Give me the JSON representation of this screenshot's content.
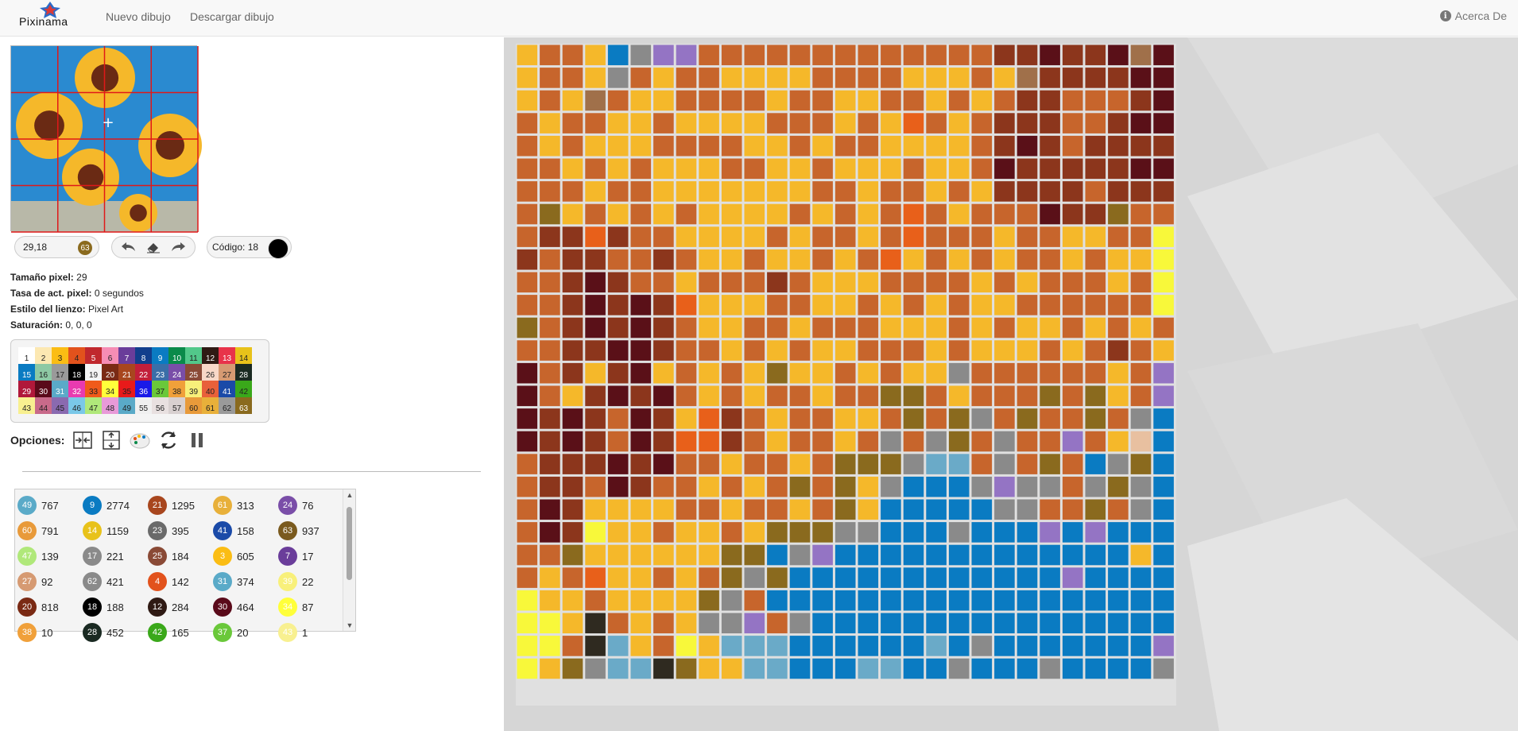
{
  "nav": {
    "brand": "Pixinama",
    "links": [
      "Nuevo dibujo",
      "Descargar dibujo"
    ],
    "about": "Acerca De"
  },
  "status": {
    "coords": "29,18",
    "coord_badge": "63",
    "code_label": "Código: 18",
    "code_color": "#000000"
  },
  "info": [
    {
      "label": "Tamaño pixel:",
      "value": "29"
    },
    {
      "label": "Tasa de act. pixel:",
      "value": "0 segundos"
    },
    {
      "label": "Estilo del lienzo:",
      "value": "Pixel Art"
    },
    {
      "label": "Saturación:",
      "value": "0, 0, 0"
    }
  ],
  "options_label": "Opciones:",
  "palette": [
    {
      "n": "1",
      "c": "#ffffff",
      "t": "#222"
    },
    {
      "n": "2",
      "c": "#fce8b2",
      "t": "#222"
    },
    {
      "n": "3",
      "c": "#fbbd14",
      "t": "#222"
    },
    {
      "n": "4",
      "c": "#e2521c",
      "t": "#222"
    },
    {
      "n": "5",
      "c": "#c0282d",
      "t": "#fff"
    },
    {
      "n": "6",
      "c": "#f68db5",
      "t": "#222"
    },
    {
      "n": "7",
      "c": "#6a3d9a",
      "t": "#fff"
    },
    {
      "n": "8",
      "c": "#123e8c",
      "t": "#fff"
    },
    {
      "n": "9",
      "c": "#0a7bc2",
      "t": "#fff"
    },
    {
      "n": "10",
      "c": "#0a8a4a",
      "t": "#fff"
    },
    {
      "n": "11",
      "c": "#52c88a",
      "t": "#222"
    },
    {
      "n": "12",
      "c": "#2f1a14",
      "t": "#fff"
    },
    {
      "n": "13",
      "c": "#e8334a",
      "t": "#fff"
    },
    {
      "n": "14",
      "c": "#e8c21a",
      "t": "#222"
    },
    {
      "n": "15",
      "c": "#0a7bc2",
      "t": "#fff"
    },
    {
      "n": "16",
      "c": "#8ec9a4",
      "t": "#222"
    },
    {
      "n": "17",
      "c": "#9a9a9a",
      "t": "#222"
    },
    {
      "n": "18",
      "c": "#000000",
      "t": "#fff"
    },
    {
      "n": "19",
      "c": "#f4f4f4",
      "t": "#222"
    },
    {
      "n": "20",
      "c": "#7a2a14",
      "t": "#fff"
    },
    {
      "n": "21",
      "c": "#a8461e",
      "t": "#fff"
    },
    {
      "n": "22",
      "c": "#c21e3a",
      "t": "#fff"
    },
    {
      "n": "23",
      "c": "#3a6ea8",
      "t": "#fff"
    },
    {
      "n": "24",
      "c": "#7a4ea8",
      "t": "#fff"
    },
    {
      "n": "25",
      "c": "#8a4a36",
      "t": "#fff"
    },
    {
      "n": "26",
      "c": "#f8d8c8",
      "t": "#222"
    },
    {
      "n": "27",
      "c": "#d69a72",
      "t": "#222"
    },
    {
      "n": "28",
      "c": "#1a2a22",
      "t": "#fff"
    },
    {
      "n": "29",
      "c": "#b0183a",
      "t": "#fff"
    },
    {
      "n": "30",
      "c": "#5a0a1a",
      "t": "#fff"
    },
    {
      "n": "31",
      "c": "#5aaac8",
      "t": "#fff"
    },
    {
      "n": "32",
      "c": "#e83ab0",
      "t": "#fff"
    },
    {
      "n": "33",
      "c": "#f05a1a",
      "t": "#222"
    },
    {
      "n": "34",
      "c": "#ffff3a",
      "t": "#222"
    },
    {
      "n": "35",
      "c": "#e81a1a",
      "t": "#222"
    },
    {
      "n": "36",
      "c": "#1a1ae8",
      "t": "#fff"
    },
    {
      "n": "37",
      "c": "#6ac83a",
      "t": "#222"
    },
    {
      "n": "38",
      "c": "#f0a03a",
      "t": "#222"
    },
    {
      "n": "39",
      "c": "#f8f07a",
      "t": "#222"
    },
    {
      "n": "40",
      "c": "#e8603a",
      "t": "#222"
    },
    {
      "n": "41",
      "c": "#1a4aa8",
      "t": "#fff"
    },
    {
      "n": "42",
      "c": "#3aa81a",
      "t": "#222"
    },
    {
      "n": "43",
      "c": "#f8f090",
      "t": "#222"
    },
    {
      "n": "44",
      "c": "#c86a8a",
      "t": "#222"
    },
    {
      "n": "45",
      "c": "#8a6ab0",
      "t": "#222"
    },
    {
      "n": "46",
      "c": "#7ac8e8",
      "t": "#222"
    },
    {
      "n": "47",
      "c": "#b0e87a",
      "t": "#222"
    },
    {
      "n": "48",
      "c": "#e89ad8",
      "t": "#222"
    },
    {
      "n": "49",
      "c": "#5aaac8",
      "t": "#222"
    },
    {
      "n": "55",
      "c": "#f0f0f0",
      "t": "#222"
    },
    {
      "n": "56",
      "c": "#e8e0e0",
      "t": "#222"
    },
    {
      "n": "57",
      "c": "#d8d0d0",
      "t": "#222"
    },
    {
      "n": "60",
      "c": "#e89a3a",
      "t": "#222"
    },
    {
      "n": "61",
      "c": "#e8b03a",
      "t": "#222"
    },
    {
      "n": "62",
      "c": "#9a9a9a",
      "t": "#222"
    },
    {
      "n": "63",
      "c": "#8a6a1e",
      "t": "#fff"
    }
  ],
  "counts": [
    {
      "n": "49",
      "v": "767",
      "c": "#5aaac8"
    },
    {
      "n": "9",
      "v": "2774",
      "c": "#0a7bc2"
    },
    {
      "n": "21",
      "v": "1295",
      "c": "#a8461e"
    },
    {
      "n": "61",
      "v": "313",
      "c": "#e8b03a"
    },
    {
      "n": "24",
      "v": "76",
      "c": "#7a4ea8"
    },
    {
      "n": "60",
      "v": "791",
      "c": "#e89a3a"
    },
    {
      "n": "14",
      "v": "1159",
      "c": "#e8c21a"
    },
    {
      "n": "23",
      "v": "395",
      "c": "#6a6a6a"
    },
    {
      "n": "41",
      "v": "158",
      "c": "#1a4aa8"
    },
    {
      "n": "63",
      "v": "937",
      "c": "#7a5a1e"
    },
    {
      "n": "47",
      "v": "139",
      "c": "#b0e87a"
    },
    {
      "n": "17",
      "v": "221",
      "c": "#8a8a8a"
    },
    {
      "n": "25",
      "v": "184",
      "c": "#8a4a36"
    },
    {
      "n": "3",
      "v": "605",
      "c": "#fbbd14"
    },
    {
      "n": "7",
      "v": "17",
      "c": "#6a3d9a"
    },
    {
      "n": "27",
      "v": "92",
      "c": "#d69a72"
    },
    {
      "n": "62",
      "v": "421",
      "c": "#8a8a8a"
    },
    {
      "n": "4",
      "v": "142",
      "c": "#e2521c"
    },
    {
      "n": "31",
      "v": "374",
      "c": "#5aaac8"
    },
    {
      "n": "39",
      "v": "22",
      "c": "#f8f07a"
    },
    {
      "n": "20",
      "v": "818",
      "c": "#7a2a14"
    },
    {
      "n": "18",
      "v": "188",
      "c": "#000000"
    },
    {
      "n": "12",
      "v": "284",
      "c": "#2f1a14"
    },
    {
      "n": "30",
      "v": "464",
      "c": "#5a0a1a"
    },
    {
      "n": "34",
      "v": "87",
      "c": "#ffff3a"
    },
    {
      "n": "38",
      "v": "10",
      "c": "#f0a03a"
    },
    {
      "n": "28",
      "v": "452",
      "c": "#1a2a22"
    },
    {
      "n": "42",
      "v": "165",
      "c": "#3aa81a"
    },
    {
      "n": "37",
      "v": "20",
      "c": "#6ac83a"
    },
    {
      "n": "43",
      "v": "1",
      "c": "#f8f090"
    }
  ],
  "canvas_grid": [
    "3cc3ig66cccccccccccccddbddbobc",
    "3cc3gc3cc3333cccc333c3oddddbbbc",
    "3c3oc33cccc3cc33cc3c3cddcccdbbb",
    "c3cc33c3333ccc3c3jc3cdddccdbbbo",
    "c3c333cccc33c3cc3333cdbdcdddddd",
    "cc3c3c333cc33c333c33cbdddddbbb3",
    "ccc3cc3333333cc3cc3c3ddddcddd3c",
    "cp3c3c3c3333c3c3cjc3cccbddpccc3",
    "cddjdcc3333c3cc3cjccc3cc33ccyyy",
    "dcddccdc33c33c3cj3c3c3cc3c33y3c",
    "ccdbdcc3cccdc333cccc3c3ccc3cyyc",
    "ccdbdbdj333cc33c3c3c33ccccccyc3",
    "pcdbdbdc33cc3ccc333c3c33c3c3c3c",
    "ccddbbdcc3c3c33ccc3c333c3cdc3gc",
    "bcd3db3c3c3p33c3c33gcccccc3cvcc",
    "bc3dbdbc3c3cc3ccppc3cccpcp3cvcc",
    "bdbdcbd3jdc3cc33cpcpgcpccpcgsgc",
    "bdbdcbdjjdc3cc3cgcgpcgccvc3zsgs",
    "cdddbdbcc3cc3cpppgaacgcpcsgpsgp",
    "cddcbdcc3c3cpcp3gsssgvggcgpgsvp",
    "cbd3333cc3cc3cp3sssssggccpcgssp",
    "cbdy33c33c3pppggsssgsssvsvssssg",
    "ccp333333ppsgvsssssssssssss3sss",
    "c3cj33c3cpgpssssssssssssvssssss",
    "y33c3333pgcssssssssssssssssssss",
    "yy3kc3c3ggvcgsssssssssssssssssg",
    "yycka3cy3aaassssssasgsssssssvsv",
    "y3pgaakp33aasssaassgsssgssssgsl"
  ],
  "canvas_colors": {
    "3": "#f5b82a",
    "c": "#c7652c",
    "d": "#8c361c",
    "b": "#5a1018",
    "g": "#8a8a8a",
    "o": "#a0704a",
    "i": "#0a7bc2",
    "6": "#9474c4",
    "j": "#e8601a",
    "p": "#8a6a1e",
    "y": "#f8f83a",
    "s": "#0a7bc2",
    "a": "#6aaac8",
    "v": "#9474c4",
    "z": "#e8c0a0",
    "k": "#2f2a20",
    "l": "#c0e870"
  }
}
